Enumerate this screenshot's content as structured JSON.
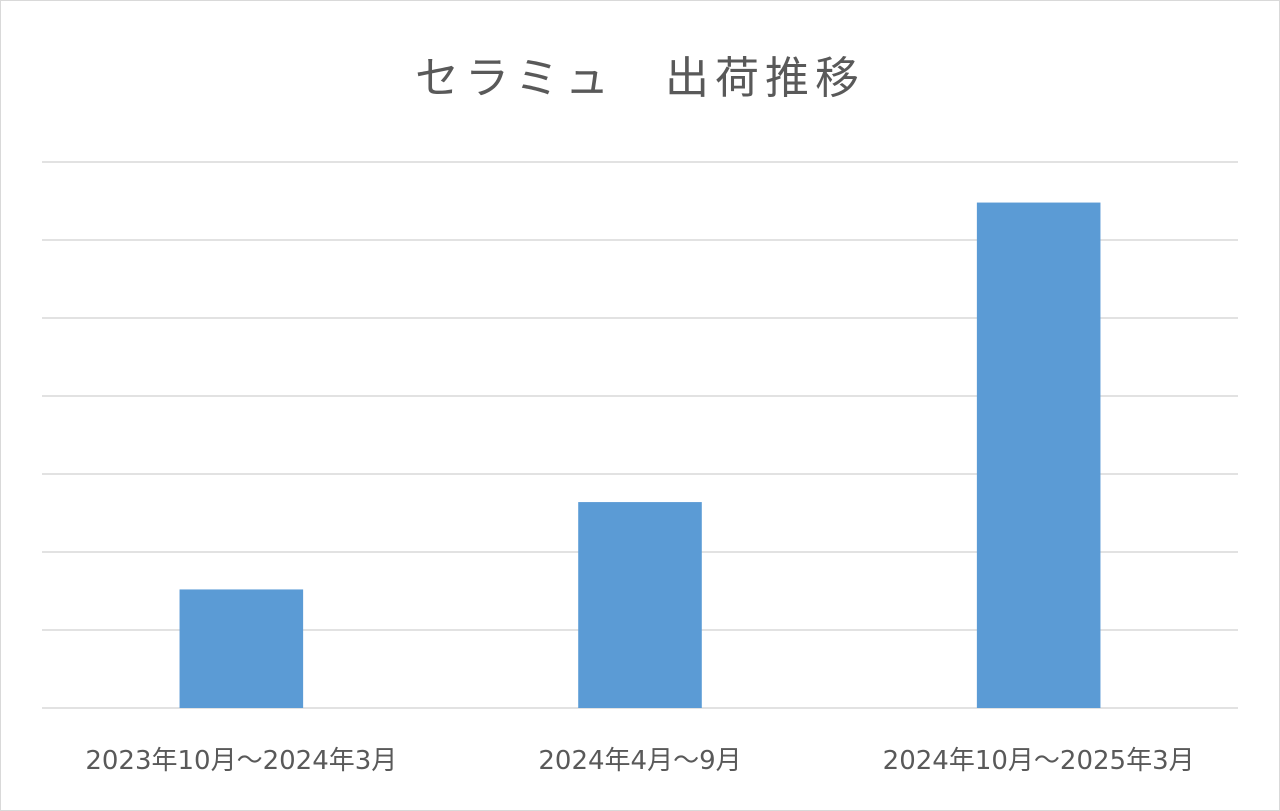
{
  "chart_data": {
    "type": "bar",
    "title": "セラミュ　出荷推移",
    "categories": [
      "2023年10月～2024年3月",
      "2024年4月～9月",
      "2024年10月～2025年3月"
    ],
    "series": [
      {
        "values": [
          1.52,
          2.64,
          6.48
        ]
      }
    ],
    "ylim": [
      0,
      7
    ],
    "grid": true,
    "y_tick_labels_visible": false,
    "legend": "none",
    "bar_color": "#5b9bd5"
  }
}
